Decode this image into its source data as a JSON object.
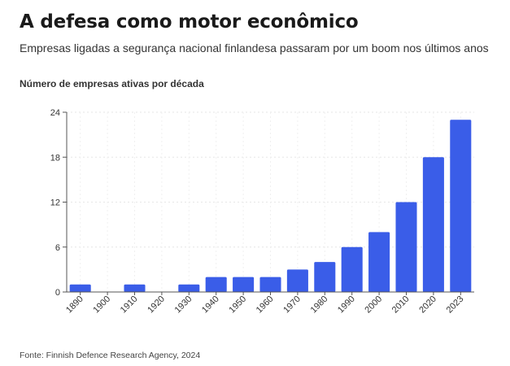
{
  "header": {
    "title": "A defesa como motor econômico",
    "subtitle": "Empresas ligadas a segurança nacional finlandesa passaram por um boom nos últimos anos"
  },
  "chart_label": "Número de empresas ativas por década",
  "source": "Fonte: Finnish Defence Research Agency, 2024",
  "colors": {
    "bar": "#3a5de8",
    "grid": "#e6e6e6",
    "axis": "#555555"
  },
  "chart_data": {
    "type": "bar",
    "title": "",
    "xlabel": "",
    "ylabel": "",
    "categories": [
      "1890",
      "1900",
      "1910",
      "1920",
      "1930",
      "1940",
      "1950",
      "1960",
      "1970",
      "1980",
      "1990",
      "2000",
      "2010",
      "2020",
      "2023"
    ],
    "values": [
      1,
      0,
      1,
      0,
      1,
      2,
      2,
      2,
      3,
      4,
      6,
      8,
      12,
      18,
      23
    ],
    "ylim": [
      0,
      24
    ],
    "yticks": [
      0,
      6,
      12,
      18,
      24
    ],
    "grid": true,
    "legend": "none"
  }
}
